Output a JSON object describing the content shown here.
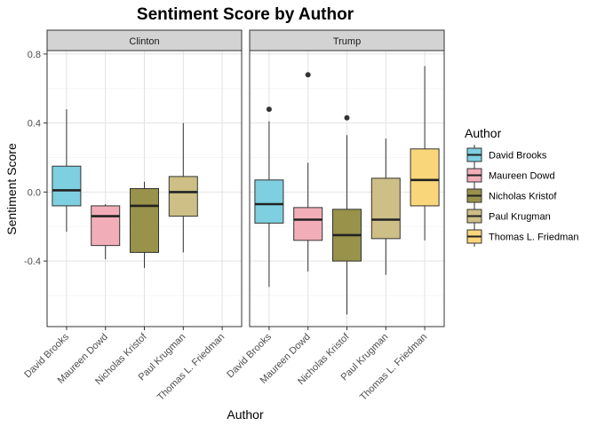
{
  "chart_data": {
    "type": "boxplot",
    "title": "Sentiment Score by Author",
    "xlabel": "Author",
    "ylabel": "Sentiment Score",
    "ylim": [
      -0.78,
      0.82
    ],
    "yticks": [
      -0.4,
      0.0,
      0.4,
      0.8
    ],
    "ytick_labels": [
      "-0.4",
      "0.0",
      "0.4",
      "0.8"
    ],
    "grid": true,
    "categories": [
      "David Brooks",
      "Maureen Dowd",
      "Nicholas Kristof",
      "Paul Krugman",
      "Thomas L. Friedman"
    ],
    "legend": {
      "title": "Author",
      "position": "right",
      "entries": [
        "David Brooks",
        "Maureen Dowd",
        "Nicholas Kristof",
        "Paul Krugman",
        "Thomas L. Friedman"
      ]
    },
    "colors": {
      "David Brooks": "#7ecfe0",
      "Maureen Dowd": "#f2aeb8",
      "Nicholas Kristof": "#98924a",
      "Paul Krugman": "#cdbf85",
      "Thomas L. Friedman": "#fad67b"
    },
    "panels": [
      {
        "label": "Clinton",
        "boxes": [
          {
            "category": "David Brooks",
            "min": -0.23,
            "q1": -0.08,
            "median": 0.01,
            "q3": 0.15,
            "max": 0.48,
            "outliers": []
          },
          {
            "category": "Maureen Dowd",
            "min": -0.39,
            "q1": -0.31,
            "median": -0.14,
            "q3": -0.08,
            "max": -0.07,
            "outliers": []
          },
          {
            "category": "Nicholas Kristof",
            "min": -0.44,
            "q1": -0.35,
            "median": -0.08,
            "q3": 0.02,
            "max": 0.06,
            "outliers": []
          },
          {
            "category": "Paul Krugman",
            "min": -0.35,
            "q1": -0.14,
            "median": 0.0,
            "q3": 0.09,
            "max": 0.4,
            "outliers": []
          }
        ]
      },
      {
        "label": "Trump",
        "boxes": [
          {
            "category": "David Brooks",
            "min": -0.55,
            "q1": -0.18,
            "median": -0.07,
            "q3": 0.07,
            "max": 0.41,
            "outliers": [
              0.48
            ]
          },
          {
            "category": "Maureen Dowd",
            "min": -0.46,
            "q1": -0.28,
            "median": -0.16,
            "q3": -0.09,
            "max": 0.17,
            "outliers": [
              0.68
            ]
          },
          {
            "category": "Nicholas Kristof",
            "min": -0.71,
            "q1": -0.4,
            "median": -0.25,
            "q3": -0.1,
            "max": 0.33,
            "outliers": [
              0.43
            ]
          },
          {
            "category": "Paul Krugman",
            "min": -0.48,
            "q1": -0.27,
            "median": -0.16,
            "q3": 0.08,
            "max": 0.31,
            "outliers": []
          },
          {
            "category": "Thomas L. Friedman",
            "min": -0.28,
            "q1": -0.08,
            "median": 0.07,
            "q3": 0.25,
            "max": 0.73,
            "outliers": []
          }
        ]
      }
    ]
  }
}
